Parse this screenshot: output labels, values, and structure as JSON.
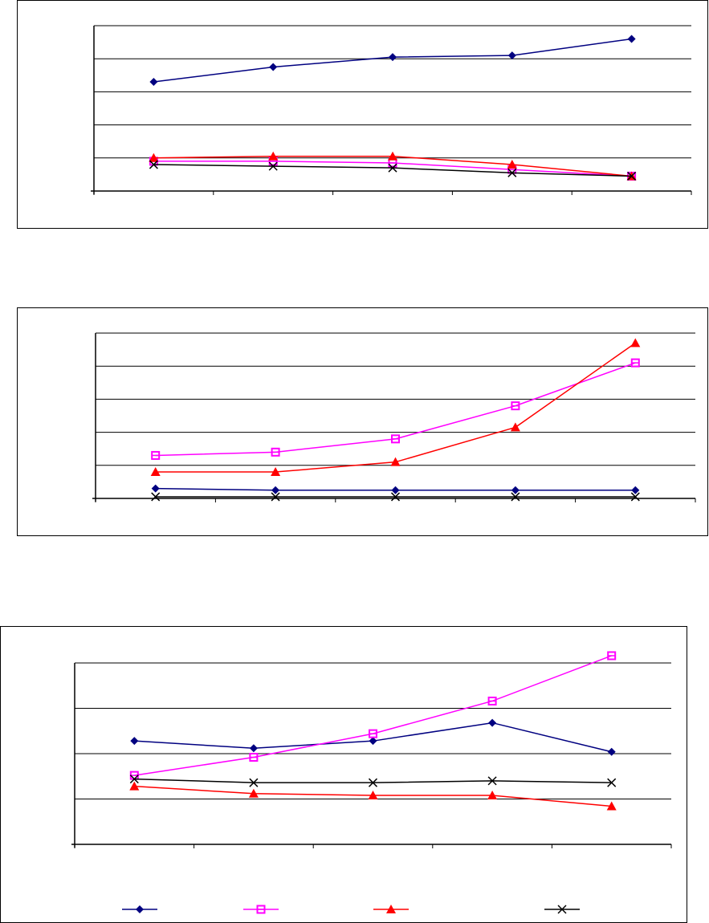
{
  "colors": {
    "navy": "#000080",
    "magenta": "#FF00FF",
    "red": "#FF0000",
    "black": "#000000",
    "grid": "#000000"
  },
  "legend": {
    "placement": "bottom",
    "entries": [
      {
        "marker": "diamond",
        "color": "#000080",
        "label": ""
      },
      {
        "marker": "square",
        "color": "#FF00FF",
        "label": ""
      },
      {
        "marker": "triangle",
        "color": "#FF0000",
        "label": ""
      },
      {
        "marker": "x",
        "color": "#000000",
        "label": ""
      }
    ]
  },
  "chart_data": [
    {
      "type": "line",
      "categories": [
        "",
        "",
        "",
        "",
        ""
      ],
      "ylim": [
        0,
        100
      ],
      "grid": true,
      "series": [
        {
          "marker": "diamond",
          "color": "#000080",
          "values": [
            66,
            75,
            81,
            82,
            92
          ]
        },
        {
          "marker": "square",
          "color": "#FF00FF",
          "values": [
            18,
            18,
            17,
            13,
            9
          ]
        },
        {
          "marker": "triangle",
          "color": "#FF0000",
          "values": [
            20,
            21,
            21,
            16,
            9
          ]
        },
        {
          "marker": "x",
          "color": "#000000",
          "values": [
            16,
            15,
            14,
            11,
            9
          ]
        }
      ]
    },
    {
      "type": "line",
      "categories": [
        "",
        "",
        "",
        "",
        ""
      ],
      "ylim": [
        0,
        100
      ],
      "grid": true,
      "series": [
        {
          "marker": "diamond",
          "color": "#000080",
          "values": [
            6,
            5,
            5,
            5,
            5
          ]
        },
        {
          "marker": "square",
          "color": "#FF00FF",
          "values": [
            26,
            28,
            36,
            56,
            82
          ]
        },
        {
          "marker": "triangle",
          "color": "#FF0000",
          "values": [
            16,
            16,
            22,
            43,
            94
          ]
        },
        {
          "marker": "x",
          "color": "#000000",
          "values": [
            1,
            1,
            1,
            1,
            1
          ]
        }
      ]
    },
    {
      "type": "line",
      "categories": [
        "",
        "",
        "",
        "",
        ""
      ],
      "ylim": [
        0,
        100
      ],
      "grid": true,
      "series": [
        {
          "marker": "diamond",
          "color": "#000080",
          "values": [
            57,
            53,
            57,
            67,
            51
          ]
        },
        {
          "marker": "square",
          "color": "#FF00FF",
          "values": [
            38,
            48,
            61,
            79,
            104
          ]
        },
        {
          "marker": "triangle",
          "color": "#FF0000",
          "values": [
            32,
            28,
            27,
            27,
            21
          ]
        },
        {
          "marker": "x",
          "color": "#000000",
          "values": [
            36,
            34,
            34,
            35,
            34
          ]
        }
      ]
    }
  ]
}
